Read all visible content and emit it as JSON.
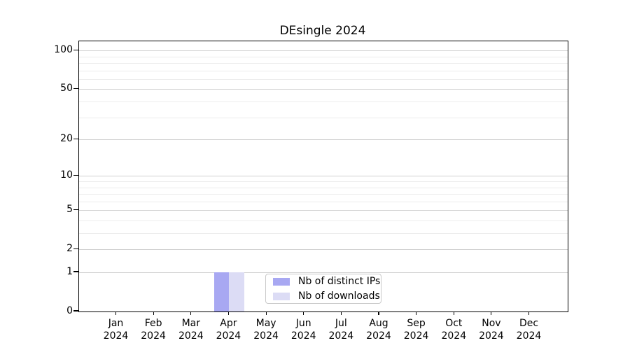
{
  "title": "DEsingle 2024",
  "chart_data": {
    "type": "bar",
    "title": "DEsingle 2024",
    "categories": [
      "Jan 2024",
      "Feb 2024",
      "Mar 2024",
      "Apr 2024",
      "May 2024",
      "Jun 2024",
      "Jul 2024",
      "Aug 2024",
      "Sep 2024",
      "Oct 2024",
      "Nov 2024",
      "Dec 2024"
    ],
    "x_months": [
      "Jan",
      "Feb",
      "Mar",
      "Apr",
      "May",
      "Jun",
      "Jul",
      "Aug",
      "Sep",
      "Oct",
      "Nov",
      "Dec"
    ],
    "x_year": "2024",
    "series": [
      {
        "name": "Nb of distinct IPs",
        "color": "#a8a8f2",
        "values": [
          0,
          0,
          0,
          1,
          0,
          0,
          0,
          0,
          0,
          0,
          0,
          0
        ]
      },
      {
        "name": "Nb of downloads",
        "color": "#dcdcf5",
        "values": [
          0,
          0,
          0,
          1,
          0,
          0,
          0,
          0,
          0,
          0,
          0,
          0
        ]
      }
    ],
    "y_axis": {
      "scale": "log10(1+x)",
      "major_ticks": [
        0,
        1,
        2,
        5,
        10,
        20,
        50,
        100
      ],
      "minor_gridlines": [
        3,
        4,
        6,
        7,
        8,
        9,
        30,
        40,
        60,
        70,
        80,
        90
      ],
      "ylim": [
        0,
        117
      ]
    },
    "grid": "horizontal",
    "legend_position": "lower center inside plot",
    "colors": {
      "grid_major": "#d0d0d0",
      "grid_minor": "#ececec",
      "axis": "#000000",
      "legend_border": "#c9c9c9"
    }
  }
}
